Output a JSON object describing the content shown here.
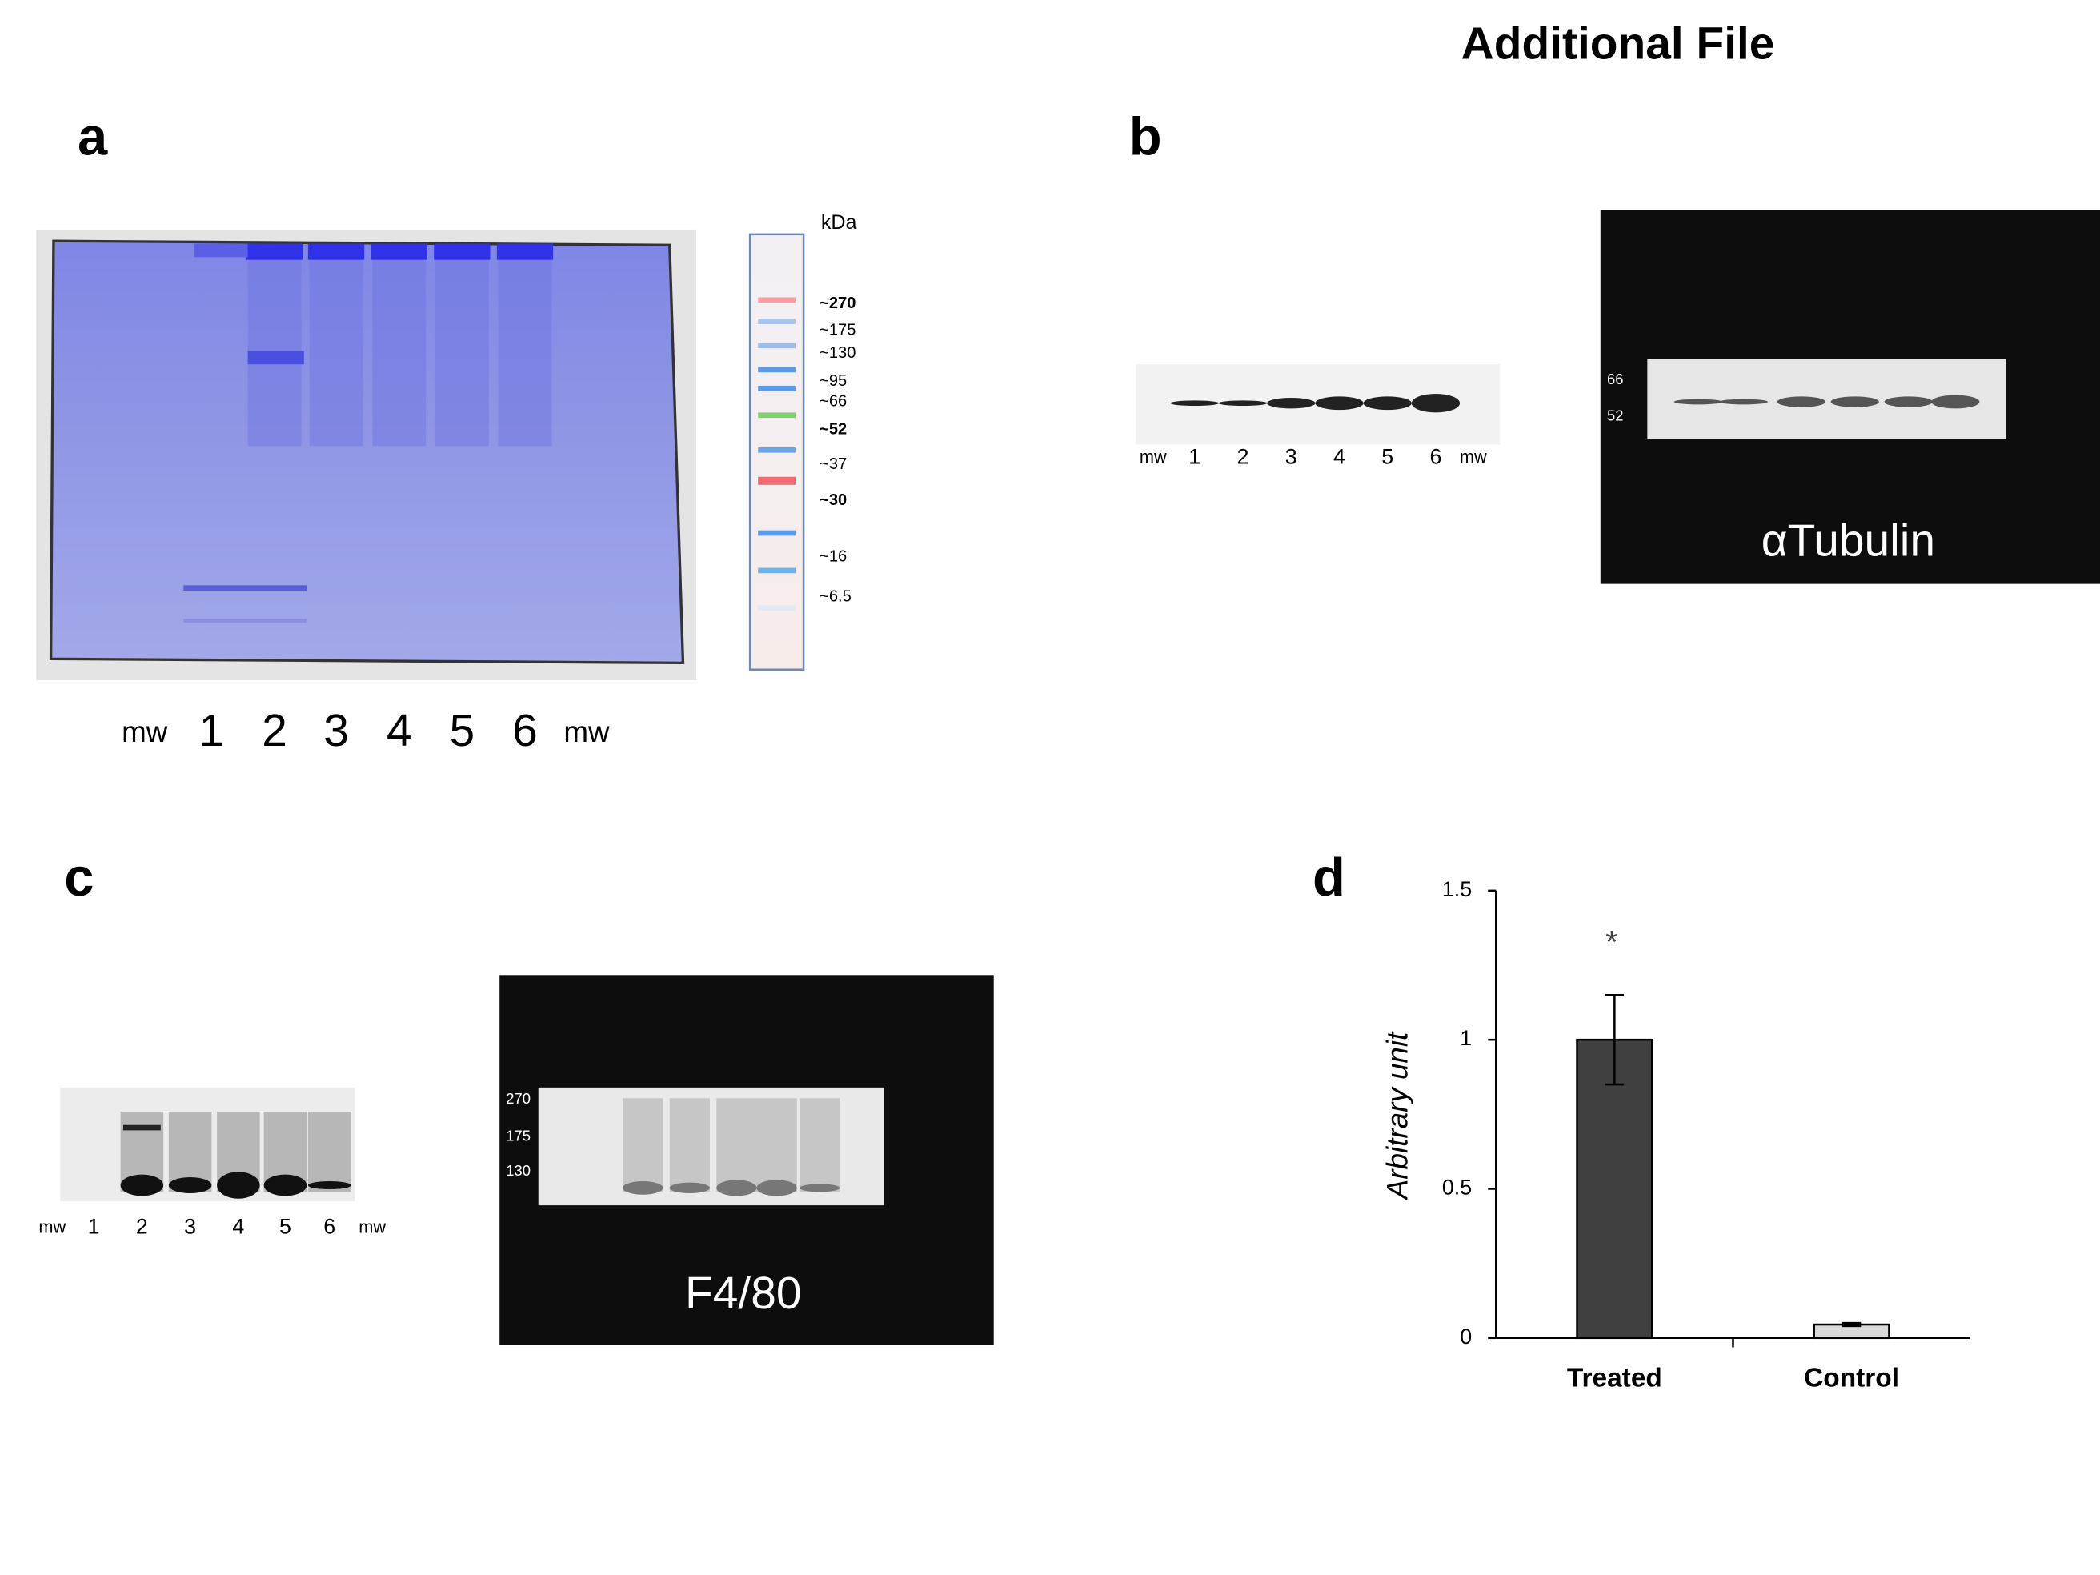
{
  "title": "Additional File",
  "panel_a": {
    "label": "a",
    "lanes": [
      "mw",
      "1",
      "2",
      "3",
      "4",
      "5",
      "6",
      "mw"
    ],
    "ladder_unit": "kDa",
    "ladder": [
      "~270",
      "~175",
      "~130",
      "~95",
      "~66",
      "~52",
      "~37",
      "~30",
      "~16",
      "~6.5"
    ]
  },
  "panel_b": {
    "label": "b",
    "lanes": [
      "mw",
      "1",
      "2",
      "3",
      "4",
      "5",
      "6",
      "mw"
    ],
    "markers": [
      "66",
      "52"
    ],
    "antibody": "αTubulin"
  },
  "panel_c": {
    "label": "c",
    "lanes": [
      "mw",
      "1",
      "2",
      "3",
      "4",
      "5",
      "6",
      "mw"
    ],
    "markers": [
      "270",
      "175",
      "130"
    ],
    "antibody": "F4/80"
  },
  "panel_d": {
    "label": "d"
  },
  "chart_data": {
    "type": "bar",
    "y_label": "Arbitrary unit",
    "categories": [
      "Treated",
      "Control"
    ],
    "values": [
      1,
      0.045
    ],
    "errors": [
      0.15,
      0.005
    ],
    "colors": [
      "#404040",
      "#d9d9d9"
    ],
    "ylim": [
      0,
      1.5
    ],
    "yticks": [
      0,
      0.5,
      1,
      1.5
    ],
    "annotation": "*"
  }
}
